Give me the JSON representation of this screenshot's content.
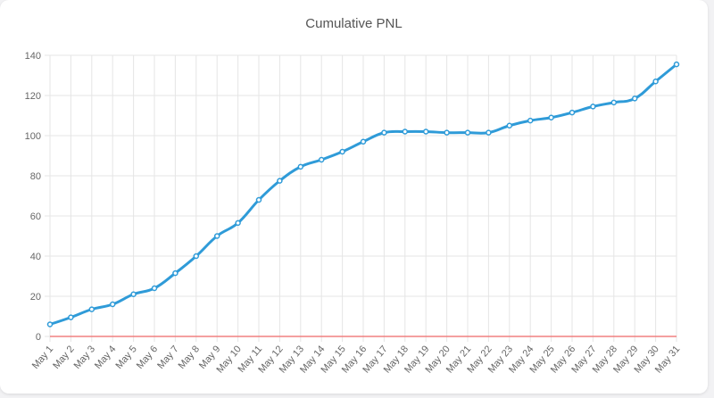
{
  "chart_data": {
    "type": "line",
    "title": "Cumulative PNL",
    "categories": [
      "May 1",
      "May 2",
      "May 3",
      "May 4",
      "May 5",
      "May 6",
      "May 7",
      "May 8",
      "May 9",
      "May 10",
      "May 11",
      "May 12",
      "May 13",
      "May 14",
      "May 15",
      "May 16",
      "May 17",
      "May 18",
      "May 19",
      "May 20",
      "May 21",
      "May 22",
      "May 23",
      "May 24",
      "May 25",
      "May 26",
      "May 27",
      "May 28",
      "May 29",
      "May 30",
      "May 31"
    ],
    "series": [
      {
        "values": [
          6,
          9.5,
          13.5,
          16,
          21,
          24,
          31.5,
          40,
          50,
          56.5,
          68,
          77.5,
          84.5,
          88,
          92,
          97,
          101.5,
          102,
          102,
          101.5,
          101.5,
          101.5,
          105,
          107.5,
          109,
          111.5,
          114.5,
          116.5,
          118.5,
          127,
          135.5
        ],
        "color": "#2f9bd8"
      }
    ],
    "ylim": [
      0,
      140
    ],
    "yticks": [
      0,
      20,
      40,
      60,
      80,
      100,
      120,
      140
    ],
    "grid": true,
    "baseline_color": "#f08080"
  }
}
